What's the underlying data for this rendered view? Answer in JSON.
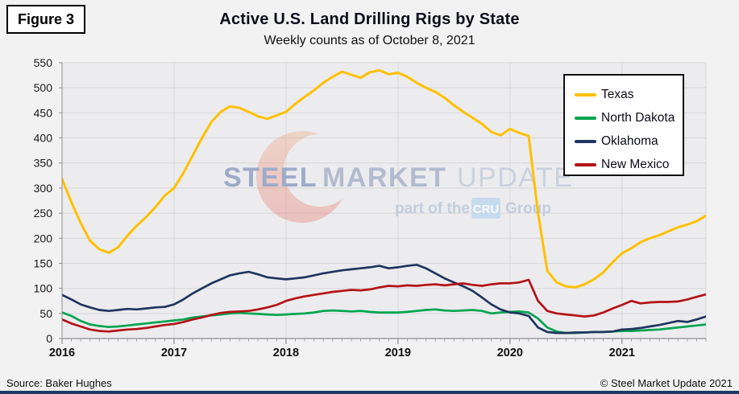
{
  "figure_label": "Figure 3",
  "title": "Active U.S. Land Drilling Rigs by State",
  "subtitle": "Weekly counts as of October 8, 2021",
  "source": "Source: Baker Hughes",
  "copyright": "© Steel Market Update 2021",
  "watermark": {
    "word1": "STEEL",
    "word2": "MARKET",
    "word3": "UPDATE",
    "tagline_prefix": "part of the",
    "tagline_badge": "CRU",
    "tagline_suffix": "Group"
  },
  "colors": {
    "texas": "#FFC000",
    "north_dakota": "#00A54F",
    "oklahoma": "#1F3560",
    "new_mexico": "#B41217",
    "plot_background": "#ececee",
    "gridline": "#d7d7da",
    "axis": "#8f8f94",
    "bottom_bar": "#1F3864"
  },
  "chart_data": {
    "type": "line",
    "title": "Active U.S. Land Drilling Rigs by State",
    "subtitle": "Weekly counts as of October 8, 2021",
    "xlabel": "",
    "ylabel": "",
    "legend_position": "upper right",
    "grid": true,
    "x_axis": {
      "start_year": 2016,
      "points_per_year": 12,
      "end": "2021-10",
      "tick_labels": [
        "2016",
        "2017",
        "2018",
        "2019",
        "2020",
        "2021"
      ]
    },
    "y_axis": {
      "min": 0,
      "max": 550,
      "step": 50,
      "tick_labels": [
        "0",
        "50",
        "100",
        "150",
        "200",
        "250",
        "300",
        "350",
        "400",
        "450",
        "500",
        "550"
      ]
    },
    "series": [
      {
        "name": "Texas",
        "color": "#FFC000",
        "values": [
          318,
          272,
          230,
          195,
          178,
          171,
          182,
          205,
          225,
          242,
          262,
          285,
          300,
          330,
          365,
          400,
          432,
          452,
          463,
          460,
          452,
          443,
          438,
          445,
          452,
          468,
          482,
          495,
          510,
          522,
          532,
          526,
          520,
          531,
          535,
          527,
          530,
          522,
          510,
          500,
          492,
          480,
          465,
          452,
          440,
          428,
          412,
          405,
          418,
          410,
          404,
          250,
          135,
          112,
          104,
          102,
          108,
          118,
          132,
          152,
          170,
          180,
          192,
          200,
          206,
          214,
          222,
          227,
          234,
          245
        ]
      },
      {
        "name": "North Dakota",
        "color": "#00A54F",
        "values": [
          52,
          45,
          35,
          28,
          25,
          23,
          24,
          26,
          28,
          30,
          32,
          34,
          36,
          38,
          42,
          44,
          46,
          48,
          50,
          51,
          50,
          49,
          48,
          47,
          48,
          49,
          50,
          52,
          55,
          56,
          55,
          54,
          55,
          53,
          52,
          52,
          52,
          53,
          55,
          57,
          58,
          56,
          55,
          56,
          57,
          55,
          50,
          52,
          53,
          54,
          52,
          40,
          22,
          14,
          11,
          11,
          12,
          13,
          13,
          14,
          15,
          15,
          16,
          17,
          18,
          20,
          22,
          24,
          26,
          28
        ]
      },
      {
        "name": "Oklahoma",
        "color": "#1F3560",
        "values": [
          87,
          78,
          68,
          62,
          57,
          55,
          57,
          59,
          58,
          60,
          62,
          63,
          68,
          78,
          90,
          100,
          110,
          118,
          126,
          130,
          133,
          128,
          122,
          120,
          118,
          120,
          122,
          126,
          130,
          133,
          136,
          138,
          140,
          142,
          145,
          140,
          142,
          145,
          147,
          140,
          130,
          120,
          112,
          104,
          95,
          82,
          68,
          58,
          52,
          50,
          45,
          22,
          13,
          11,
          11,
          12,
          12,
          13,
          13,
          14,
          18,
          19,
          21,
          24,
          27,
          31,
          35,
          33,
          38,
          44
        ]
      },
      {
        "name": "New Mexico",
        "color": "#B41217",
        "values": [
          38,
          30,
          24,
          18,
          15,
          14,
          16,
          18,
          19,
          21,
          24,
          27,
          29,
          33,
          38,
          42,
          47,
          51,
          53,
          54,
          55,
          58,
          62,
          67,
          75,
          80,
          84,
          87,
          90,
          93,
          95,
          97,
          96,
          98,
          102,
          105,
          104,
          106,
          105,
          107,
          108,
          106,
          108,
          110,
          107,
          105,
          108,
          110,
          110,
          112,
          117,
          75,
          55,
          50,
          48,
          46,
          44,
          46,
          52,
          60,
          67,
          75,
          70,
          72,
          73,
          73,
          74,
          78,
          83,
          88
        ]
      }
    ]
  }
}
